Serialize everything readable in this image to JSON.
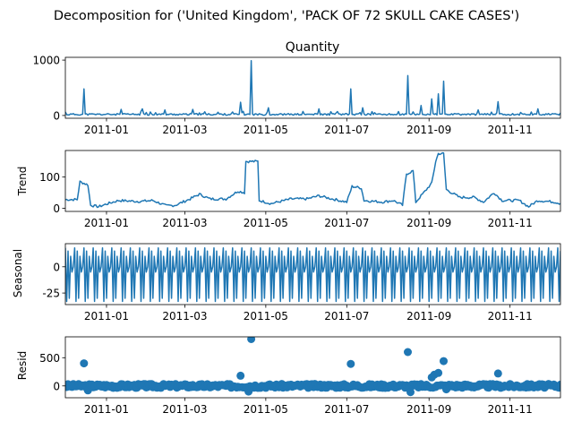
{
  "figure": {
    "suptitle": "Decomposition for ('United Kingdom', 'PACK OF 72 SKULL CAKE CASES')"
  },
  "colors": {
    "series": "#1f77b4",
    "zero_line": "#000000"
  },
  "chart_data": [
    {
      "type": "line",
      "title": "Quantity",
      "ylabel": "",
      "x_range": [
        "2010-12-01",
        "2011-12-09"
      ],
      "ylim": [
        -50,
        1050
      ],
      "yticks": [
        0,
        1000
      ],
      "xticks": [
        "2011-01",
        "2011-03",
        "2011-05",
        "2011-07",
        "2011-09",
        "2011-11"
      ],
      "baseline": 20,
      "spikes": [
        {
          "x": "2010-12-15",
          "y": 480
        },
        {
          "x": "2011-01-12",
          "y": 110
        },
        {
          "x": "2011-01-28",
          "y": 120
        },
        {
          "x": "2011-02-14",
          "y": 100
        },
        {
          "x": "2011-03-07",
          "y": 110
        },
        {
          "x": "2011-04-12",
          "y": 240
        },
        {
          "x": "2011-04-20",
          "y": 990
        },
        {
          "x": "2011-05-03",
          "y": 140
        },
        {
          "x": "2011-06-10",
          "y": 120
        },
        {
          "x": "2011-07-04",
          "y": 480
        },
        {
          "x": "2011-07-13",
          "y": 140
        },
        {
          "x": "2011-08-16",
          "y": 720
        },
        {
          "x": "2011-08-26",
          "y": 180
        },
        {
          "x": "2011-09-03",
          "y": 300
        },
        {
          "x": "2011-09-08",
          "y": 390
        },
        {
          "x": "2011-09-12",
          "y": 620
        },
        {
          "x": "2011-10-08",
          "y": 100
        },
        {
          "x": "2011-10-23",
          "y": 250
        },
        {
          "x": "2011-11-22",
          "y": 120
        }
      ]
    },
    {
      "type": "line",
      "title": "",
      "ylabel": "Trend",
      "x_range": [
        "2010-12-01",
        "2011-12-09"
      ],
      "ylim": [
        -10,
        185
      ],
      "yticks": [
        0,
        100
      ],
      "xticks": [
        "2011-01",
        "2011-03",
        "2011-05",
        "2011-07",
        "2011-09",
        "2011-11"
      ],
      "points": [
        [
          "2010-12-01",
          28
        ],
        [
          "2010-12-10",
          28
        ],
        [
          "2010-12-12",
          85
        ],
        [
          "2010-12-18",
          75
        ],
        [
          "2010-12-20",
          10
        ],
        [
          "2010-12-26",
          5
        ],
        [
          "2011-01-02",
          15
        ],
        [
          "2011-01-10",
          25
        ],
        [
          "2011-01-25",
          22
        ],
        [
          "2011-02-05",
          25
        ],
        [
          "2011-02-15",
          8
        ],
        [
          "2011-02-22",
          10
        ],
        [
          "2011-03-05",
          30
        ],
        [
          "2011-03-12",
          45
        ],
        [
          "2011-03-20",
          30
        ],
        [
          "2011-04-01",
          30
        ],
        [
          "2011-04-10",
          55
        ],
        [
          "2011-04-15",
          50
        ],
        [
          "2011-04-16",
          150
        ],
        [
          "2011-04-25",
          150
        ],
        [
          "2011-04-26",
          25
        ],
        [
          "2011-05-05",
          15
        ],
        [
          "2011-05-20",
          30
        ],
        [
          "2011-06-01",
          30
        ],
        [
          "2011-06-10",
          40
        ],
        [
          "2011-06-20",
          30
        ],
        [
          "2011-07-01",
          20
        ],
        [
          "2011-07-05",
          70
        ],
        [
          "2011-07-12",
          65
        ],
        [
          "2011-07-14",
          25
        ],
        [
          "2011-07-28",
          20
        ],
        [
          "2011-08-05",
          25
        ],
        [
          "2011-08-12",
          10
        ],
        [
          "2011-08-15",
          110
        ],
        [
          "2011-08-20",
          120
        ],
        [
          "2011-08-22",
          20
        ],
        [
          "2011-08-30",
          60
        ],
        [
          "2011-09-03",
          80
        ],
        [
          "2011-09-06",
          150
        ],
        [
          "2011-09-08",
          175
        ],
        [
          "2011-09-12",
          175
        ],
        [
          "2011-09-14",
          60
        ],
        [
          "2011-09-24",
          35
        ],
        [
          "2011-10-05",
          35
        ],
        [
          "2011-10-12",
          20
        ],
        [
          "2011-10-20",
          50
        ],
        [
          "2011-10-26",
          25
        ],
        [
          "2011-11-08",
          25
        ],
        [
          "2011-11-15",
          5
        ],
        [
          "2011-11-22",
          25
        ],
        [
          "2011-12-05",
          20
        ],
        [
          "2011-12-09",
          15
        ]
      ]
    },
    {
      "type": "line",
      "title": "",
      "ylabel": "Seasonal",
      "x_range": [
        "2010-12-01",
        "2011-12-09"
      ],
      "ylim": [
        -36,
        22
      ],
      "yticks": [
        0,
        -25
      ],
      "xticks": [
        "2011-01",
        "2011-03",
        "2011-05",
        "2011-07",
        "2011-09",
        "2011-11"
      ],
      "period_days": 7,
      "weekly_pattern": [
        18,
        -33,
        15,
        -30,
        10,
        -5,
        0
      ]
    },
    {
      "type": "scatter",
      "title": "",
      "ylabel": "Resid",
      "x_range": [
        "2010-12-01",
        "2011-12-09"
      ],
      "ylim": [
        -210,
        870
      ],
      "yticks": [
        0,
        500
      ],
      "xticks": [
        "2011-01",
        "2011-03",
        "2011-05",
        "2011-07",
        "2011-09",
        "2011-11"
      ],
      "outliers": [
        {
          "x": "2010-12-15",
          "y": 400
        },
        {
          "x": "2011-04-12",
          "y": 180
        },
        {
          "x": "2011-04-20",
          "y": 830
        },
        {
          "x": "2011-07-04",
          "y": 390
        },
        {
          "x": "2011-08-16",
          "y": 600
        },
        {
          "x": "2011-09-03",
          "y": 150
        },
        {
          "x": "2011-09-05",
          "y": 200
        },
        {
          "x": "2011-09-08",
          "y": 230
        },
        {
          "x": "2011-09-12",
          "y": 440
        },
        {
          "x": "2011-10-23",
          "y": 220
        },
        {
          "x": "2010-12-18",
          "y": -80
        },
        {
          "x": "2011-04-18",
          "y": -100
        },
        {
          "x": "2011-08-18",
          "y": -110
        },
        {
          "x": "2011-09-14",
          "y": -60
        }
      ]
    }
  ]
}
